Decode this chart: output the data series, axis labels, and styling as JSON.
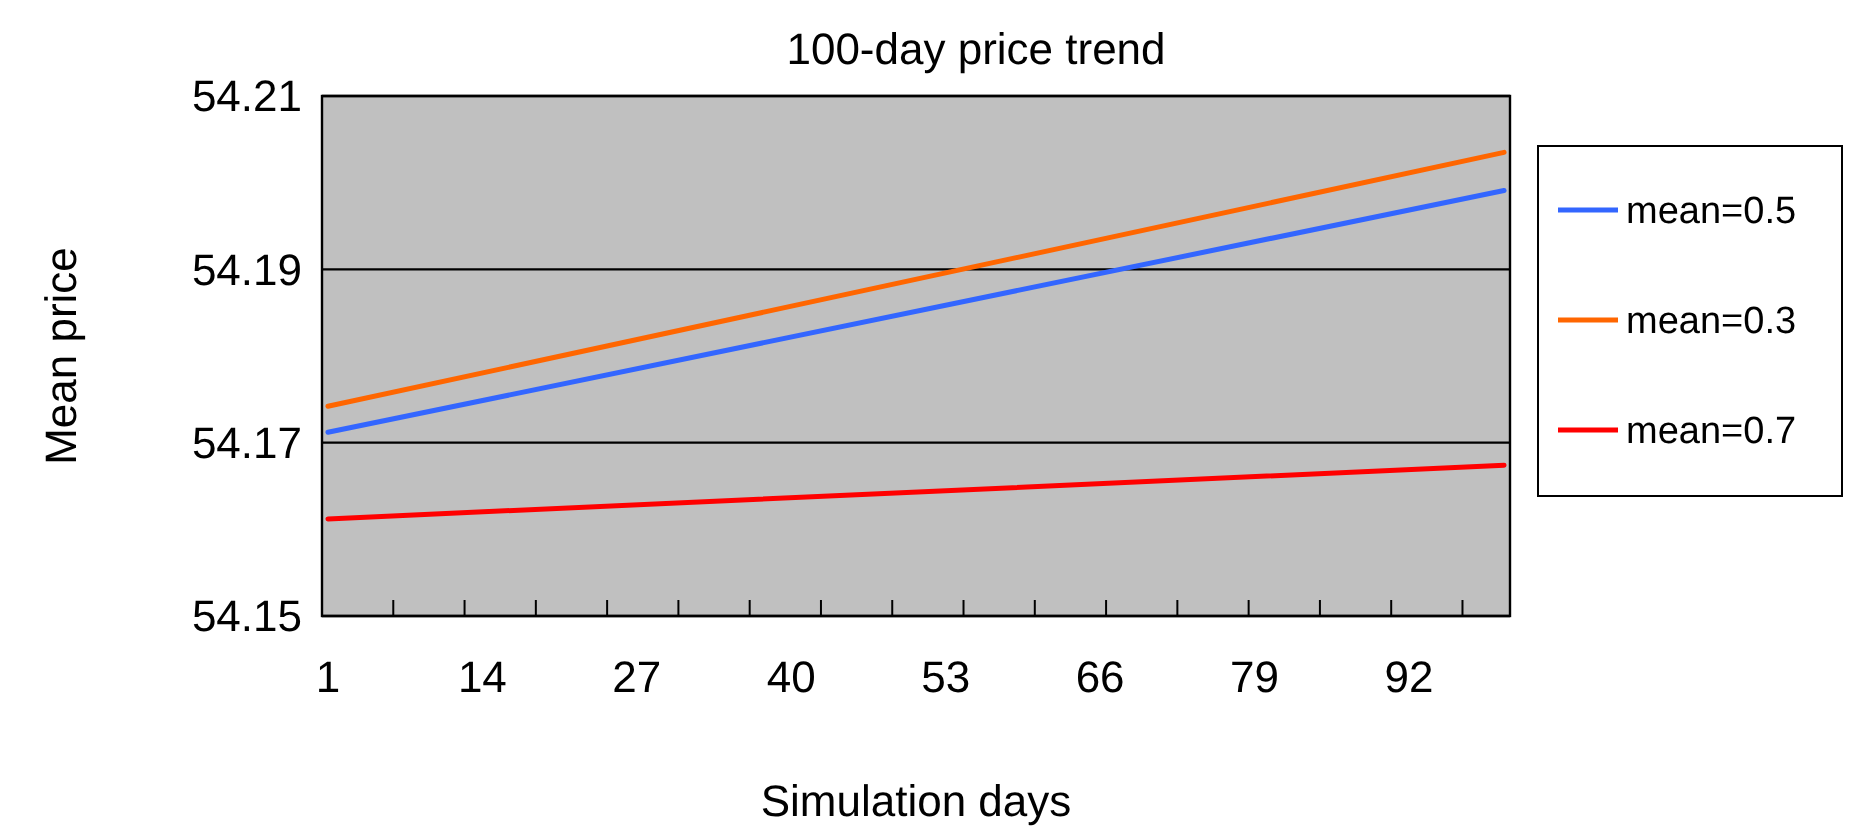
{
  "chart_data": {
    "type": "line",
    "title": "100-day price trend",
    "xlabel": "Simulation days",
    "ylabel": "Mean price",
    "xlim": [
      0.5,
      100.5
    ],
    "xticks": [
      1,
      14,
      27,
      40,
      53,
      66,
      79,
      92,
      {
        "value": 6.5,
        "label": null
      },
      {
        "value": 12.5,
        "label": null
      },
      {
        "value": 18.5,
        "label": null
      },
      {
        "value": 24.5,
        "label": null
      },
      {
        "value": 30.5,
        "label": null
      },
      {
        "value": 36.5,
        "label": null
      },
      {
        "value": 42.5,
        "label": null
      },
      {
        "value": 48.5,
        "label": null
      },
      {
        "value": 54.5,
        "label": null
      },
      {
        "value": 60.5,
        "label": null
      },
      {
        "value": 66.5,
        "label": null
      },
      {
        "value": 72.5,
        "label": null
      },
      {
        "value": 78.5,
        "label": null
      },
      {
        "value": 84.5,
        "label": null
      },
      {
        "value": 90.5,
        "label": null
      },
      {
        "value": 96.5,
        "label": null
      }
    ],
    "x": [
      1,
      100
    ],
    "ylim": [
      54.15,
      54.21
    ],
    "yticks": [
      54.15,
      54.17,
      54.19,
      54.21
    ],
    "grid": "y",
    "legend": "right",
    "marker": "none",
    "line_style": "solid",
    "series": [
      {
        "name": "mean=0.5",
        "color": "#3366ff",
        "values": [
          54.1712,
          54.1991
        ]
      },
      {
        "name": "mean=0.3",
        "color": "#ff6600",
        "values": [
          54.1742,
          54.2035
        ]
      },
      {
        "name": "mean=0.7",
        "color": "#ff0000",
        "values": [
          54.1612,
          54.1674
        ]
      }
    ]
  }
}
